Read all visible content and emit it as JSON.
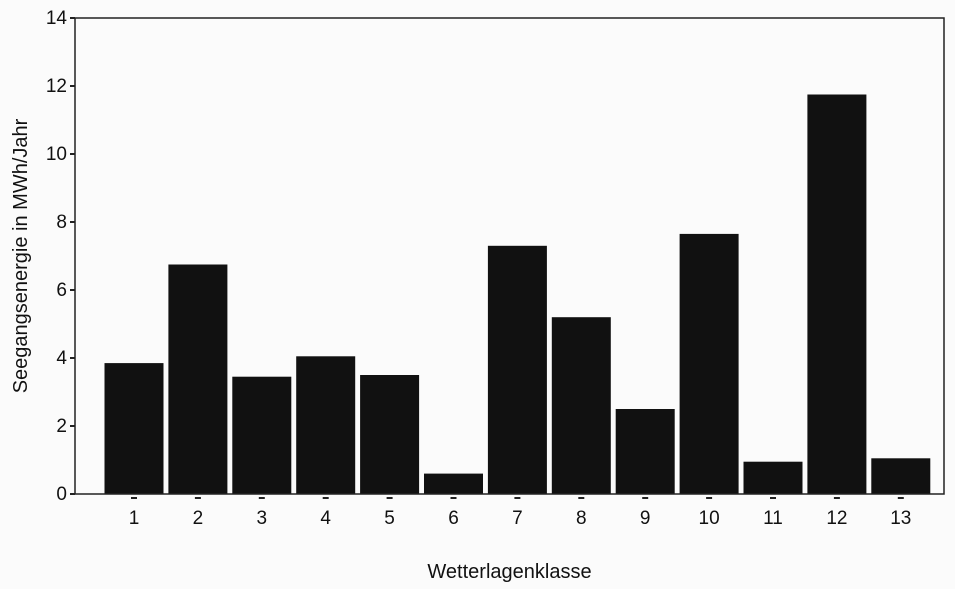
{
  "chart_data": {
    "type": "bar",
    "title": "",
    "xlabel": "Wetterlagenklasse",
    "ylabel": "Seegangsenergie in MWh/Jahr",
    "categories": [
      "1",
      "2",
      "3",
      "4",
      "5",
      "6",
      "7",
      "8",
      "9",
      "10",
      "11",
      "12",
      "13"
    ],
    "values": [
      3.85,
      6.75,
      3.45,
      4.05,
      3.5,
      0.6,
      7.3,
      5.2,
      2.5,
      7.65,
      0.95,
      11.75,
      1.05
    ],
    "ylim": [
      0,
      14
    ],
    "yticks": [
      "0",
      "2",
      "4",
      "6",
      "8",
      "10",
      "12",
      "14"
    ],
    "grid": false,
    "bar_color": "#111111"
  }
}
